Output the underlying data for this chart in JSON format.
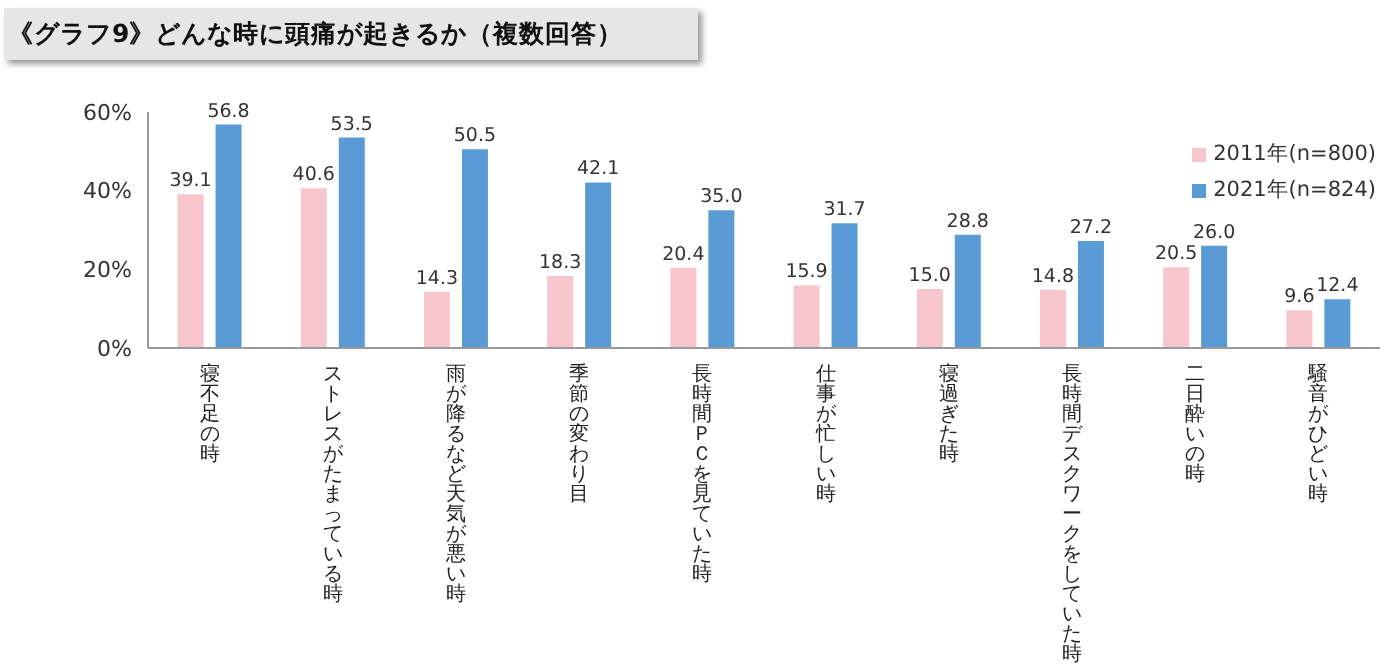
{
  "chart_data": {
    "type": "bar",
    "title": "《グラフ9》どんな時に頭痛が起きるか（複数回答）",
    "categories": [
      "寝不足の時",
      "ストレスがたまっている時",
      "雨が降るなど天気が悪い時",
      "季節の変わり目",
      "長時間ＰＣを見ていた時",
      "仕事が忙しい時",
      "寝過ぎた時",
      "長時間デスクワークをしていた時",
      "二日酔いの時",
      "騒音がひどい時"
    ],
    "series": [
      {
        "name": "2011年(n=800)",
        "color": "#f7c6cc",
        "values": [
          39.1,
          40.6,
          14.3,
          18.3,
          20.4,
          15.9,
          15.0,
          14.8,
          20.5,
          9.6
        ],
        "value_labels": [
          "39.1",
          "40.6",
          "14.3",
          "18.3",
          "20.4",
          "15.9",
          "15.0",
          "14.8",
          "20.5",
          "9.6"
        ]
      },
      {
        "name": "2021年(n=824)",
        "color": "#5b9bd5",
        "values": [
          56.8,
          53.5,
          50.5,
          42.1,
          35.0,
          31.7,
          28.8,
          27.2,
          26.0,
          12.4
        ],
        "value_labels": [
          "56.8",
          "53.5",
          "50.5",
          "42.1",
          "35.0",
          "31.7",
          "28.8",
          "27.2",
          "26.0",
          "12.4"
        ]
      }
    ],
    "ylim": [
      0,
      60
    ],
    "yticks": [
      {
        "value": 0,
        "label": "0%"
      },
      {
        "value": 20,
        "label": "20%"
      },
      {
        "value": 40,
        "label": "40%"
      },
      {
        "value": 60,
        "label": "60%"
      }
    ],
    "grid": false,
    "legend": "top right"
  }
}
